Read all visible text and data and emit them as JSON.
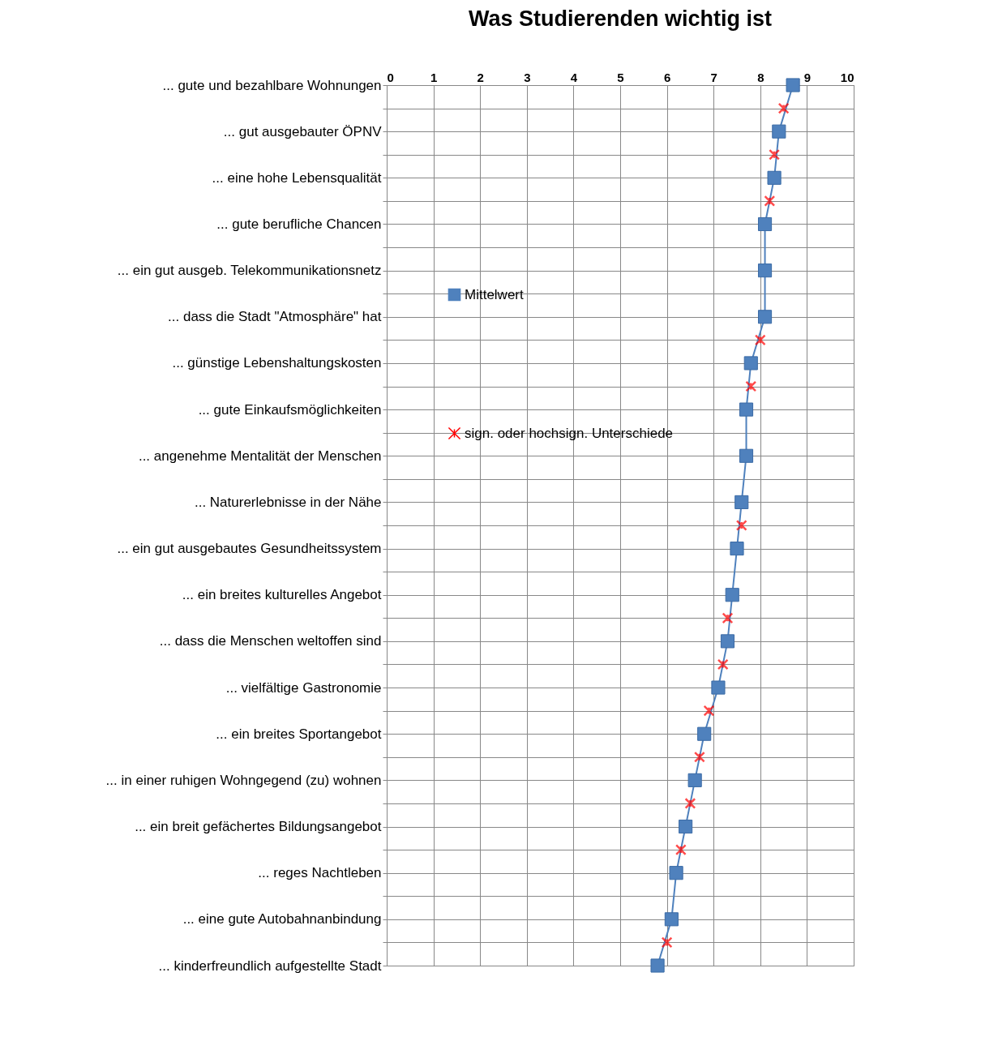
{
  "chart_data": {
    "type": "line",
    "orientation": "horizontal",
    "title": "Was Studierenden wichtig ist",
    "categories": [
      "... gute und bezahlbare Wohnungen",
      null,
      "... gut ausgebauter ÖPNV",
      null,
      "... eine hohe Lebensqualität",
      null,
      "... gute berufliche Chancen",
      null,
      "... ein gut ausgeb. Telekommunikationsnetz",
      null,
      "... dass die Stadt \"Atmosphäre\" hat",
      null,
      "... günstige Lebenshaltungskosten",
      null,
      "... gute Einkaufsmöglichkeiten",
      null,
      "... angenehme Mentalität der Menschen",
      null,
      "... Naturerlebnisse in der Nähe",
      null,
      "... ein gut ausgebautes Gesundheitssystem",
      null,
      "... ein breites kulturelles Angebot",
      null,
      "... dass die Menschen weltoffen sind",
      null,
      "... vielfältige Gastronomie",
      null,
      "... ein breites Sportangebot",
      null,
      "... in einer ruhigen Wohngegend (zu) wohnen",
      null,
      "... ein breit gefächertes Bildungsangebot",
      null,
      "... reges Nachtleben",
      null,
      "... eine gute Autobahnanbindung",
      null,
      "... kinderfreundlich aufgestellte Stadt"
    ],
    "series": [
      {
        "name": "Mittelwert",
        "marker": "square",
        "color": "#4f81bd",
        "values": [
          8.7,
          null,
          8.4,
          null,
          8.3,
          null,
          8.1,
          null,
          8.1,
          null,
          8.1,
          null,
          7.8,
          null,
          7.7,
          null,
          7.7,
          null,
          7.6,
          null,
          7.5,
          null,
          7.4,
          null,
          7.3,
          null,
          7.1,
          null,
          6.8,
          null,
          6.6,
          null,
          6.4,
          null,
          6.2,
          null,
          6.1,
          null,
          5.8
        ]
      },
      {
        "name": "sign. oder hochsign. Unterschiede",
        "type": "scatter",
        "marker": "cross",
        "color": "#ff0000",
        "values": [
          null,
          8.5,
          null,
          8.3,
          null,
          8.2,
          null,
          null,
          null,
          null,
          null,
          8.0,
          null,
          7.8,
          null,
          null,
          null,
          null,
          null,
          7.6,
          null,
          null,
          null,
          7.3,
          null,
          7.2,
          null,
          6.9,
          null,
          6.7,
          null,
          6.5,
          null,
          6.3,
          null,
          null,
          null,
          6.0,
          null
        ]
      }
    ],
    "xlim": [
      0,
      10
    ],
    "xticks": [
      0,
      1,
      2,
      3,
      4,
      5,
      6,
      7,
      8,
      9,
      10
    ],
    "grid": true,
    "legend": "left"
  }
}
